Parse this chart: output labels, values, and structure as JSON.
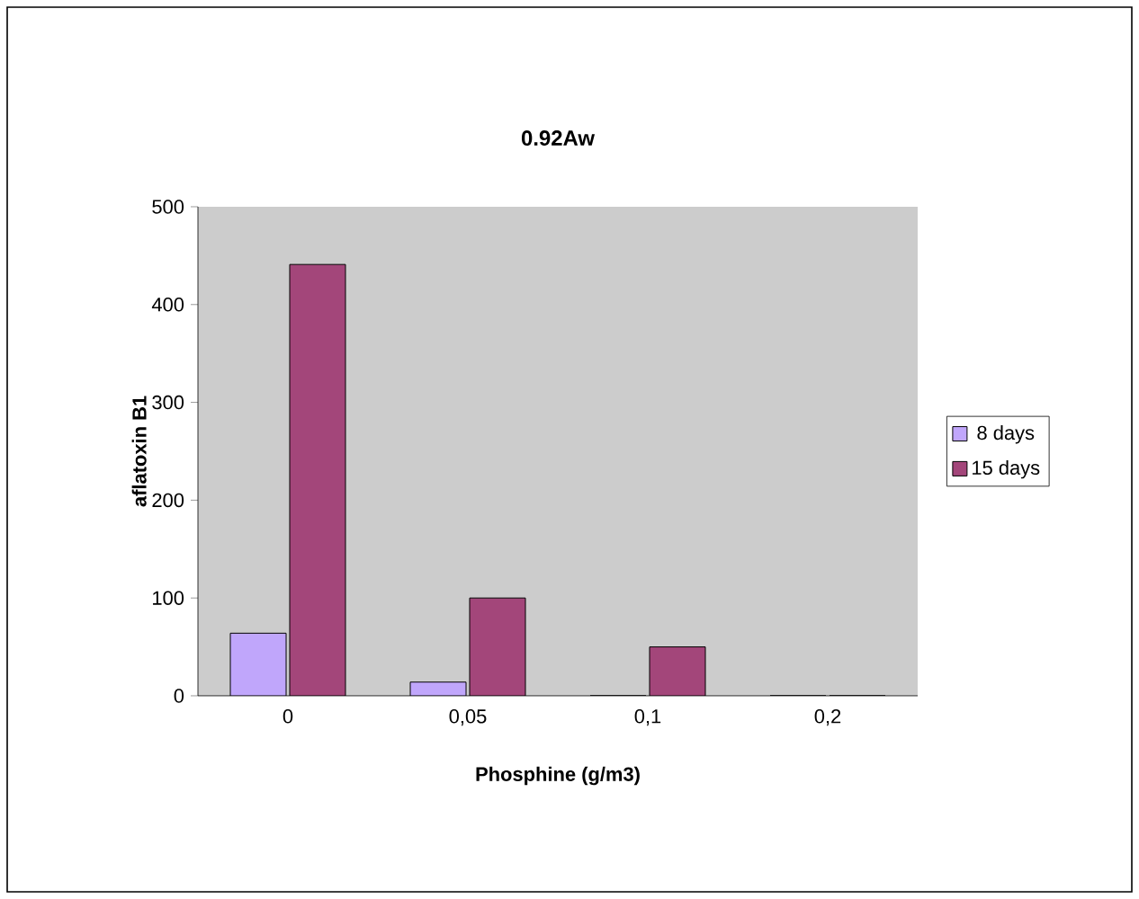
{
  "chart_data": {
    "type": "bar",
    "title": "0.92Aw",
    "xlabel": "Phosphine  (g/m3)",
    "ylabel": "aflatoxin B1",
    "categories": [
      "0",
      "0,05",
      "0,1",
      "0,2"
    ],
    "series": [
      {
        "name": "8 days",
        "color": "#c0a6fb",
        "values": [
          64,
          14,
          0,
          0
        ]
      },
      {
        "name": "15 days",
        "color": "#a3467a",
        "values": [
          441,
          100,
          50,
          0
        ]
      }
    ],
    "ylim": [
      0,
      500
    ],
    "yticks": [
      0,
      100,
      200,
      300,
      400,
      500
    ],
    "legend": "right",
    "grid": false
  }
}
